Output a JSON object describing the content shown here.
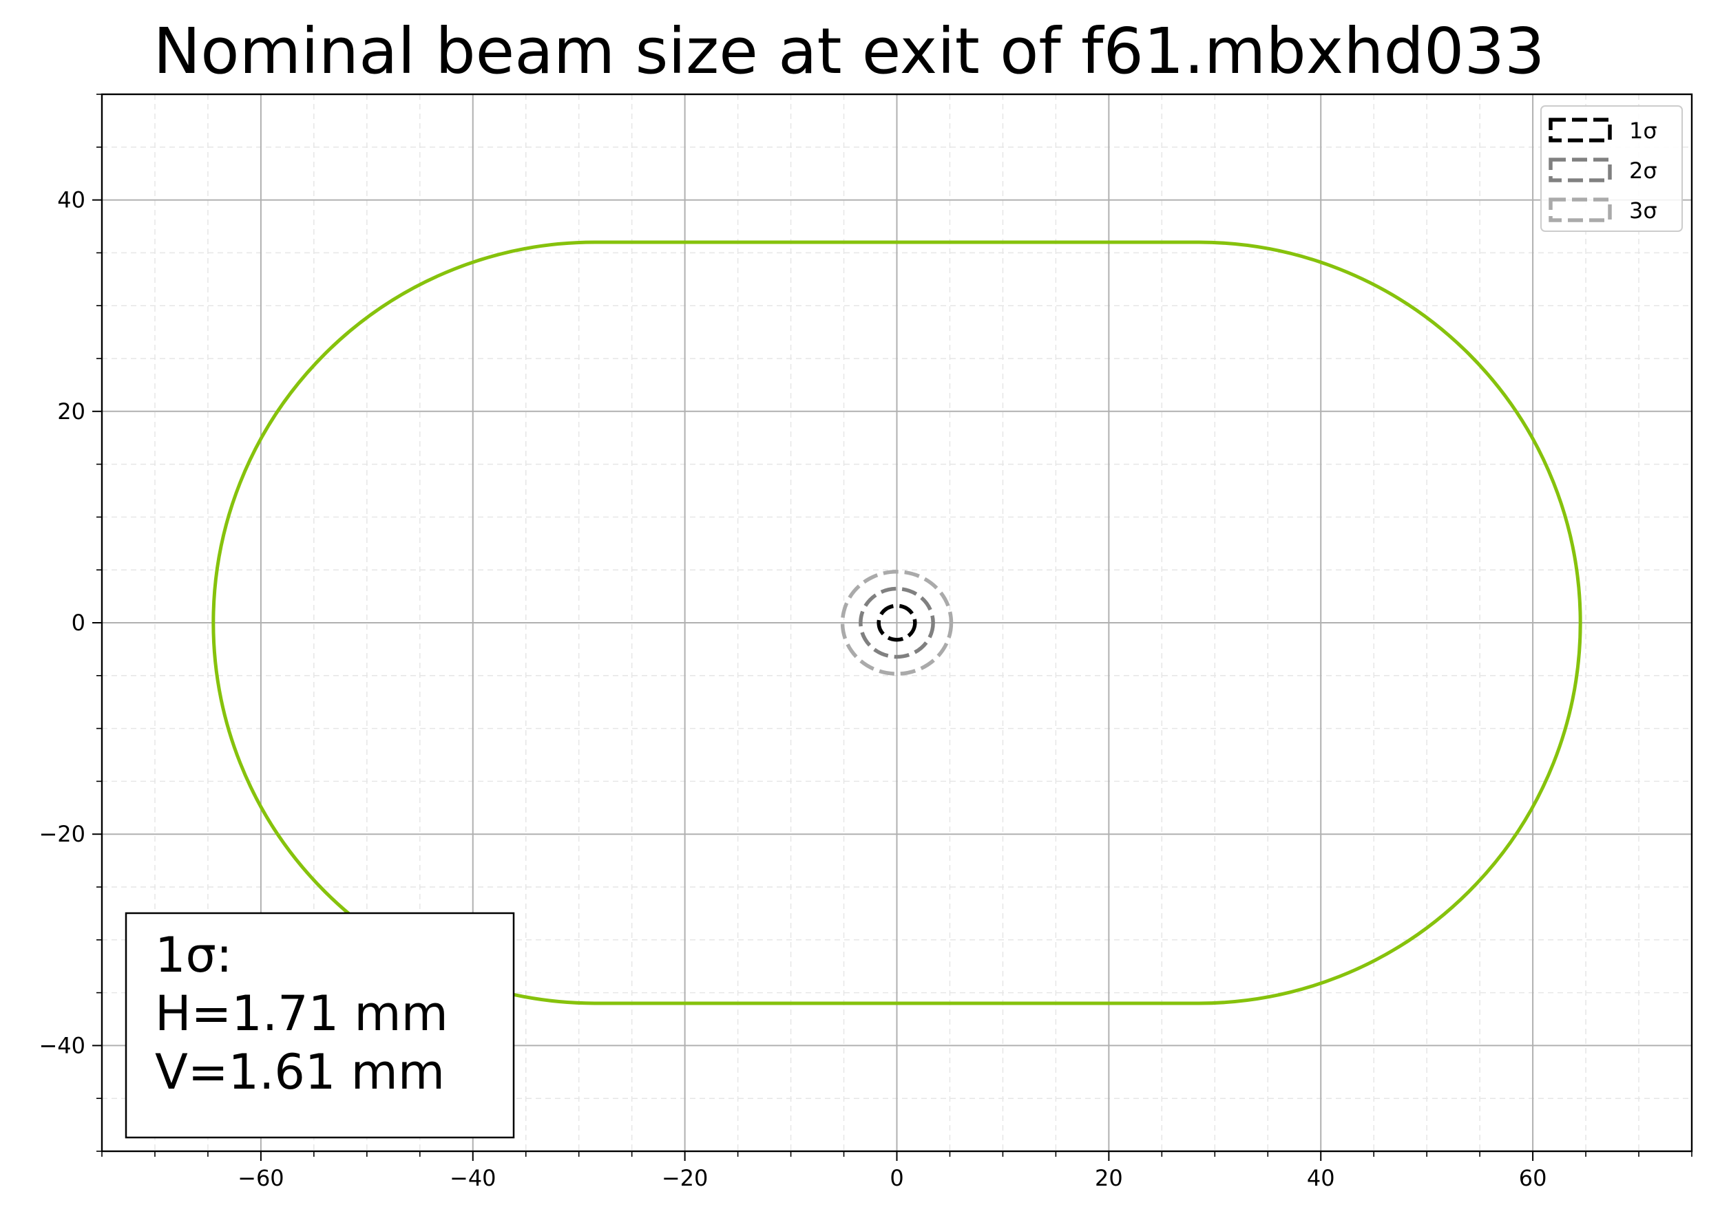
{
  "chart_data": {
    "type": "line",
    "title": "Nominal beam size at exit of f61.mbxhd033",
    "xlabel": "",
    "ylabel": "",
    "xlim": [
      -75,
      75
    ],
    "ylim": [
      -50,
      50
    ],
    "x_ticks": [
      -60,
      -40,
      -20,
      0,
      20,
      40,
      60
    ],
    "y_ticks": [
      -40,
      -20,
      0,
      20,
      40
    ],
    "x_tick_labels": [
      "−60",
      "−40",
      "−20",
      "0",
      "20",
      "40",
      "60"
    ],
    "y_tick_labels": [
      "−40",
      "−20",
      "0",
      "20",
      "40"
    ],
    "x_minor_step": 5,
    "y_minor_step": 5,
    "grid": true,
    "aperture": {
      "shape": "racetrack",
      "half_width": 64.5,
      "half_height": 36,
      "flat_half_length": 28.5,
      "color": "#86c20c"
    },
    "beam": {
      "sigma_h": 1.71,
      "sigma_v": 1.61,
      "series": [
        {
          "name": "1σ",
          "n_sigma": 1,
          "color": "#000000"
        },
        {
          "name": "2σ",
          "n_sigma": 2,
          "color": "#808080"
        },
        {
          "name": "3σ",
          "n_sigma": 3,
          "color": "#aaaaaa"
        }
      ]
    },
    "legend": {
      "placement": "top-right",
      "entries": [
        "1σ",
        "2σ",
        "3σ"
      ]
    },
    "annotation": {
      "placement": "bottom-left",
      "lines": [
        "1σ:",
        "H=1.71 mm",
        "V=1.61 mm"
      ]
    }
  }
}
